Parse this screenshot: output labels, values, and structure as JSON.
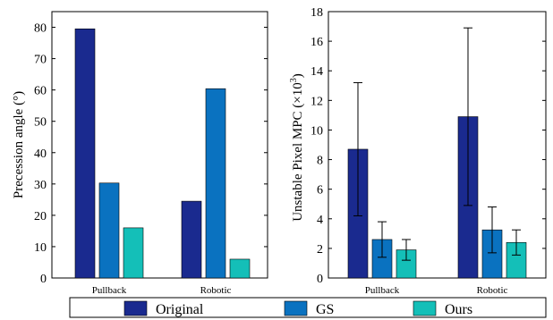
{
  "colors": {
    "original": "#1a2a8f",
    "gs": "#0a72c0",
    "ours": "#14bfb8"
  },
  "chart_data": [
    {
      "type": "bar",
      "categories": [
        "Pullback",
        "Robotic"
      ],
      "series": [
        {
          "name": "Original",
          "values": [
            79.5,
            24.5
          ]
        },
        {
          "name": "GS",
          "values": [
            30.3,
            60.4
          ]
        },
        {
          "name": "Ours",
          "values": [
            16.0,
            6.0
          ]
        }
      ],
      "ylabel": "Precession angle (°)",
      "ylim": [
        0,
        85
      ],
      "yticks": [
        "0",
        "10",
        "20",
        "30",
        "40",
        "50",
        "60",
        "70",
        "80"
      ],
      "grid": false
    },
    {
      "type": "bar",
      "categories": [
        "Pullback",
        "Robotic"
      ],
      "series": [
        {
          "name": "Original",
          "values": [
            8.7,
            10.9
          ],
          "err": [
            4.5,
            6.0
          ]
        },
        {
          "name": "GS",
          "values": [
            2.6,
            3.25
          ],
          "err": [
            1.2,
            1.55
          ]
        },
        {
          "name": "Ours",
          "values": [
            1.9,
            2.4
          ],
          "err": [
            0.7,
            0.85
          ]
        }
      ],
      "ylabel_main": "Unstable Pixel MPC (",
      "ylabel_mult": "×10",
      "ylabel_exp": "3",
      "ylabel_close": ")",
      "ylim": [
        0,
        18
      ],
      "yticks": [
        "0",
        "2",
        "4",
        "6",
        "8",
        "10",
        "12",
        "14",
        "16",
        "18"
      ],
      "grid": false
    }
  ],
  "legend": {
    "entries": [
      "Original",
      "GS",
      "Ours"
    ],
    "placement": "bottom"
  }
}
